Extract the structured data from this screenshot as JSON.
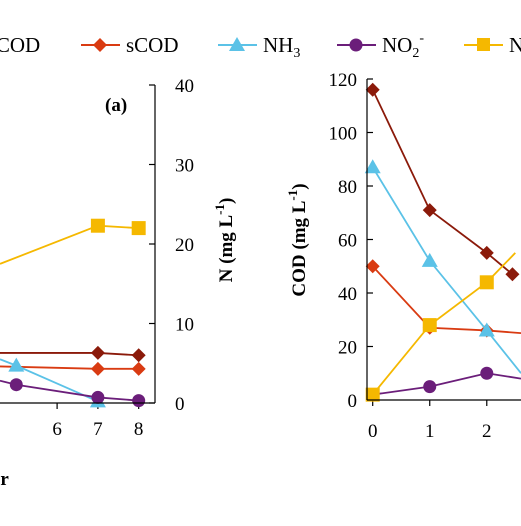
{
  "legend": [
    {
      "label": "tCOD",
      "color": "#8B1A0A",
      "marker": "diamond"
    },
    {
      "label": "sCOD",
      "color": "#D93B12",
      "marker": "diamond"
    },
    {
      "label": "NH",
      "sub": "3",
      "sup": "",
      "color": "#5BC2E7",
      "marker": "triangle"
    },
    {
      "label": "NO",
      "sub": "2",
      "sup": "-",
      "color": "#6B1E7A",
      "marker": "circle"
    },
    {
      "label": "N",
      "sub": "",
      "sup": "",
      "color": "#F5B800",
      "marker": "square"
    }
  ],
  "chart_data": [
    {
      "type": "line",
      "panel_label": "(a)",
      "xlabel": "er",
      "ylabel_right": "N (mg L",
      "ylabel_right_sup": "-1",
      "ylabel_right_end": ")",
      "x_ticks": [
        "6",
        "7",
        "8"
      ],
      "y_ticks_right": [
        "0",
        "10",
        "20",
        "30",
        "40"
      ],
      "xlim": [
        4.6,
        8.4
      ],
      "ylim_right": [
        0,
        40
      ],
      "series": [
        {
          "name": "tCOD",
          "color": "#8B1A0A",
          "marker": "diamond",
          "x": [
            4.6,
            7,
            8
          ],
          "y": [
            6.3,
            6.3,
            6.0
          ]
        },
        {
          "name": "sCOD",
          "color": "#D93B12",
          "marker": "diamond",
          "x": [
            4.6,
            7,
            8
          ],
          "y": [
            4.6,
            4.3,
            4.3
          ]
        },
        {
          "name": "NH3",
          "color": "#5BC2E7",
          "marker": "triangle",
          "x": [
            4.6,
            5.0,
            7
          ],
          "y": [
            5.5,
            4.7,
            0.2
          ]
        },
        {
          "name": "NO2-",
          "color": "#6B1E7A",
          "marker": "circle",
          "x": [
            4.6,
            5.0,
            7,
            8
          ],
          "y": [
            2.8,
            2.3,
            0.7,
            0.3
          ]
        },
        {
          "name": "N",
          "color": "#F5B800",
          "marker": "square",
          "x": [
            4.6,
            7,
            8
          ],
          "y": [
            17.5,
            22.3,
            22.0
          ],
          "marked": [
            false,
            true,
            true
          ],
          "note": "left-clipped series in data units"
        }
      ]
    },
    {
      "type": "line",
      "ylabel": "COD (mg L",
      "ylabel_sup": "-1",
      "ylabel_end": ")",
      "x_ticks": [
        "0",
        "1",
        "2"
      ],
      "y_ticks": [
        "0",
        "20",
        "40",
        "60",
        "80",
        "100",
        "120"
      ],
      "xlim": [
        -0.1,
        2.6
      ],
      "ylim": [
        0,
        120
      ],
      "series": [
        {
          "name": "tCOD",
          "color": "#8B1A0A",
          "marker": "diamond",
          "x": [
            0,
            1,
            2,
            2.45
          ],
          "y": [
            116,
            71,
            55,
            47
          ]
        },
        {
          "name": "sCOD",
          "color": "#D93B12",
          "marker": "diamond",
          "x": [
            0,
            1,
            2,
            2.6
          ],
          "y": [
            50,
            27,
            26,
            25
          ]
        },
        {
          "name": "NH3",
          "color": "#5BC2E7",
          "marker": "triangle",
          "x": [
            0,
            1,
            2,
            2.6
          ],
          "y": [
            87,
            52,
            26,
            10
          ]
        },
        {
          "name": "NO2-",
          "color": "#6B1E7A",
          "marker": "circle",
          "x": [
            0,
            1,
            2,
            2.6
          ],
          "y": [
            2,
            5,
            10,
            8
          ]
        },
        {
          "name": "N",
          "color": "#F5B800",
          "marker": "square",
          "x": [
            0,
            1,
            2,
            2.5
          ],
          "y": [
            2,
            28,
            44,
            55
          ]
        }
      ]
    }
  ]
}
